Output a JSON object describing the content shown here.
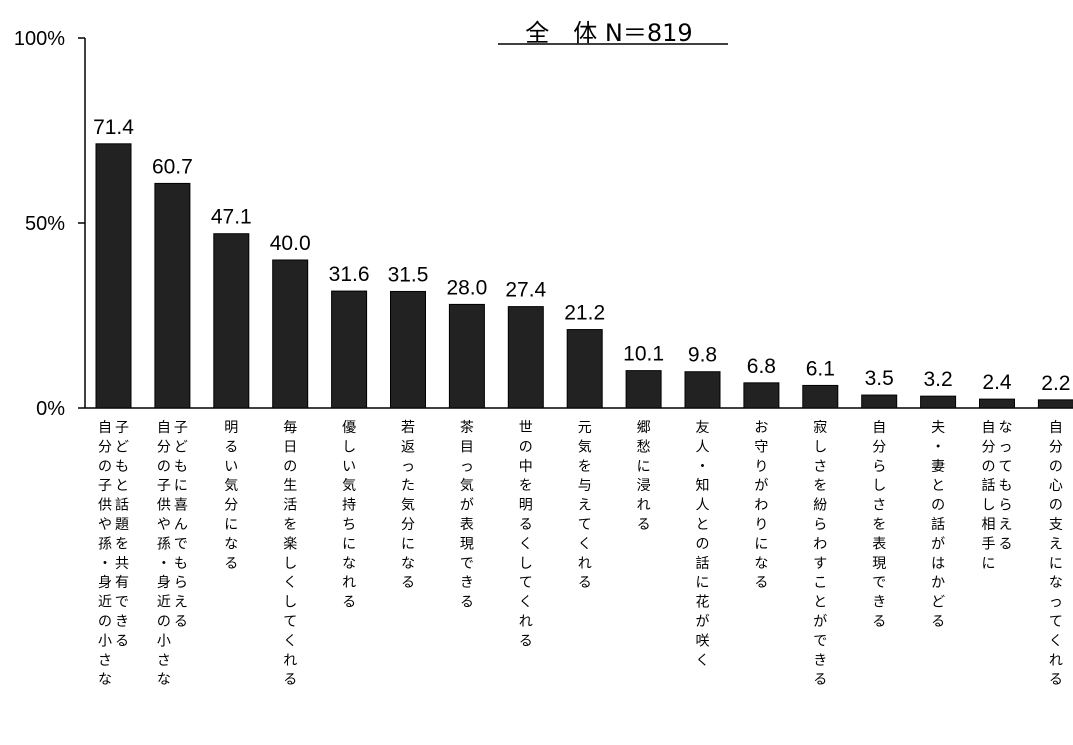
{
  "chart_data": {
    "type": "bar",
    "title": "全　体 N＝819",
    "categories": [
      "自分の子供や孫・身近の小さな|子どもと話題を共有できる",
      "自分の子供や孫・身近の小さな|子どもに喜んでもらえる",
      "明るい気分になる",
      "毎日の生活を楽しくしてくれる",
      "優しい気持ちになれる",
      "若返った気分になる",
      "茶目っ気が表現できる",
      "世の中を明るくしてくれる",
      "元気を与えてくれる",
      "郷愁に浸れる",
      "友人・知人との話に花が咲く",
      "お守りがわりになる",
      "寂しさを紛らわすことができる",
      "自分らしさを表現できる",
      "夫・妻との話がはかどる",
      "自分の話し相手に|なってもらえる",
      "自分の心の支えになってくれる"
    ],
    "values": [
      71.4,
      60.7,
      47.1,
      40.0,
      31.6,
      31.5,
      28.0,
      27.4,
      21.2,
      10.1,
      9.8,
      6.8,
      6.1,
      3.5,
      3.2,
      2.4,
      2.2
    ],
    "value_labels": [
      "71.4",
      "60.7",
      "47.1",
      "40.0",
      "31.6",
      "31.5",
      "28.0",
      "27.4",
      "21.2",
      "10.1",
      "9.8",
      "6.8",
      "6.1",
      "3.5",
      "3.2",
      "2.4",
      "2.2"
    ],
    "yticks": [
      "0%",
      "50%",
      "100%"
    ],
    "ylim": [
      0,
      100
    ],
    "bar_color": "#222222"
  }
}
